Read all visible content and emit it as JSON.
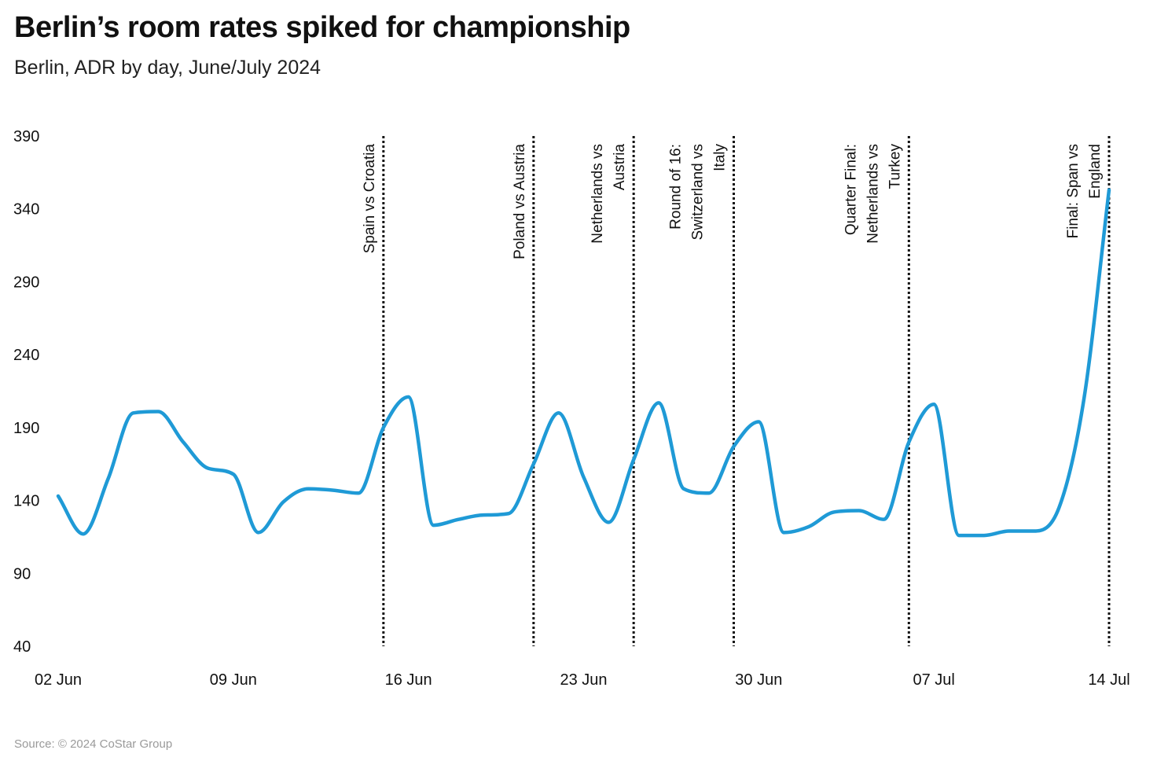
{
  "header": {
    "title": "Berlin’s room rates spiked for championship",
    "subtitle": "Berlin, ADR by day, June/July 2024"
  },
  "footer": {
    "source": "Source: © 2024 CoStar Group"
  },
  "colors": {
    "line": "#1f9ad6",
    "event_line": "#111111",
    "text": "#111111",
    "source_text": "#9a9a9a"
  },
  "chart_data": {
    "type": "line",
    "title": "Berlin’s room rates spiked for championship",
    "subtitle": "Berlin, ADR by day, June/July 2024",
    "xlabel": "",
    "ylabel": "",
    "ylim": [
      40,
      390
    ],
    "yticks": [
      40,
      90,
      140,
      190,
      240,
      290,
      340,
      390
    ],
    "xlim": [
      "2024-06-02",
      "2024-07-14"
    ],
    "xticks": [
      {
        "date": "2024-06-02",
        "label": "02 Jun"
      },
      {
        "date": "2024-06-09",
        "label": "09 Jun"
      },
      {
        "date": "2024-06-16",
        "label": "16 Jun"
      },
      {
        "date": "2024-06-23",
        "label": "23 Jun"
      },
      {
        "date": "2024-06-30",
        "label": "30 Jun"
      },
      {
        "date": "2024-07-07",
        "label": "07 Jul"
      },
      {
        "date": "2024-07-14",
        "label": "14 Jul"
      }
    ],
    "grid": false,
    "legend": "none",
    "series": [
      {
        "x": [
          "2024-06-02",
          "2024-06-03",
          "2024-06-04",
          "2024-06-05",
          "2024-06-06",
          "2024-06-07",
          "2024-06-08",
          "2024-06-09",
          "2024-06-10",
          "2024-06-11",
          "2024-06-12",
          "2024-06-13",
          "2024-06-14",
          "2024-06-15",
          "2024-06-16",
          "2024-06-17",
          "2024-06-18",
          "2024-06-19",
          "2024-06-20",
          "2024-06-21",
          "2024-06-22",
          "2024-06-23",
          "2024-06-24",
          "2024-06-25",
          "2024-06-26",
          "2024-06-27",
          "2024-06-28",
          "2024-06-29",
          "2024-06-30",
          "2024-07-01",
          "2024-07-02",
          "2024-07-03",
          "2024-07-04",
          "2024-07-05",
          "2024-07-06",
          "2024-07-07",
          "2024-07-08",
          "2024-07-09",
          "2024-07-10",
          "2024-07-11",
          "2024-07-12",
          "2024-07-13",
          "2024-07-14"
        ],
        "values": [
          143,
          117,
          155,
          200,
          201,
          180,
          162,
          158,
          118,
          139,
          148,
          147,
          145,
          190,
          211,
          123,
          127,
          130,
          131,
          165,
          200,
          156,
          125,
          168,
          207,
          148,
          145,
          177,
          194,
          118,
          122,
          132,
          133,
          127,
          180,
          206,
          116,
          116,
          119,
          119,
          135,
          210,
          353
        ]
      }
    ],
    "events": [
      {
        "date": "2024-06-15",
        "label": "Spain vs Croatia"
      },
      {
        "date": "2024-06-21",
        "label": "Poland vs Austria"
      },
      {
        "date": "2024-06-25",
        "label": "Netherlands vs Austria"
      },
      {
        "date": "2024-06-29",
        "label": "Round of 16: Switzerland vs Italy"
      },
      {
        "date": "2024-07-06",
        "label": "Quarter Final: Netherlands vs Turkey"
      },
      {
        "date": "2024-07-14",
        "label": "Final: Span vs England"
      }
    ]
  }
}
